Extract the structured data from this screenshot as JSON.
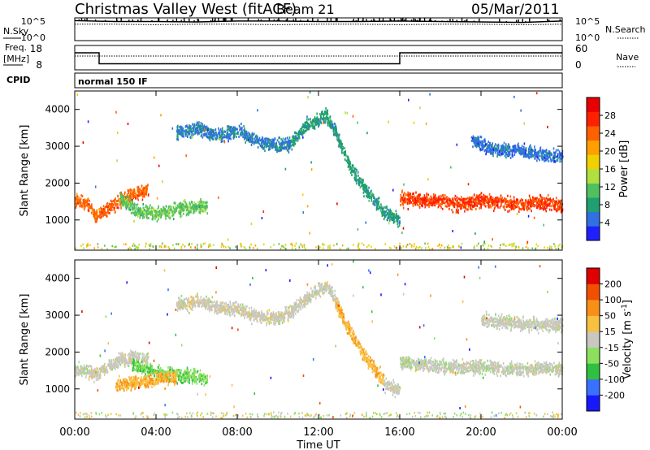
{
  "header": {
    "station": "Christmas Valley West (fitACF)",
    "beam": "Beam 21",
    "date": "05/Mar/2011"
  },
  "noise_panel": {
    "left_label": "N.Sky",
    "right_label": "N.Search",
    "left_ticks": [
      "10^5",
      "10^0"
    ],
    "right_ticks": [
      "10^5",
      "10^0"
    ]
  },
  "freq_panel": {
    "left_label_1": "Freq.",
    "left_label_2": "[MHz]",
    "right_label": "Nave",
    "left_ticks": [
      "18",
      "8"
    ],
    "right_ticks": [
      "60",
      "0"
    ]
  },
  "cpid": {
    "label": "CPID",
    "value": "normal 150 IF"
  },
  "axes": {
    "ylabel": "Slant Range [km]",
    "yticks": [
      "4000",
      "3000",
      "2000",
      "1000"
    ],
    "xticks": [
      "00:00",
      "04:00",
      "08:00",
      "12:00",
      "16:00",
      "20:00",
      "00:00"
    ],
    "xlabel": "Time UT"
  },
  "power_colorbar": {
    "label": "Power [dB]",
    "ticks": [
      "28",
      "24",
      "20",
      "16",
      "12",
      "8",
      "4"
    ],
    "colors": [
      "#2020ff",
      "#3070e0",
      "#20a070",
      "#50c060",
      "#b0e040",
      "#f0d000",
      "#ffa000",
      "#ff6000",
      "#ff2000",
      "#e80000"
    ]
  },
  "velocity_colorbar": {
    "label_main": "Velocity [",
    "label_unit": "m s",
    "label_exp": "-1",
    "label_close": "]",
    "ticks": [
      "200",
      "100",
      "50",
      "15",
      "-15",
      "-50",
      "-100",
      "-200"
    ],
    "colors": [
      "#1818ff",
      "#3a70ff",
      "#30c040",
      "#8ce060",
      "#c8c8c0",
      "#f8c040",
      "#f89018",
      "#f05000",
      "#e00000"
    ]
  },
  "chart_data": [
    {
      "type": "line",
      "title": "",
      "series": [
        {
          "name": "N.Sky",
          "style": "solid",
          "level_log10": [
            4.4,
            4.2,
            4.2,
            4.1,
            4.3,
            4.3,
            4.2,
            4.2,
            4.3,
            4.2,
            4.1,
            4.0,
            4.3
          ]
        },
        {
          "name": "N.Search",
          "style": "dotted",
          "level_log10": [
            3.6,
            3.6,
            3.5,
            3.6,
            3.6,
            3.5,
            3.6,
            3.6,
            3.5,
            3.6,
            3.6,
            3.5,
            3.6
          ]
        }
      ],
      "x": [
        0,
        2,
        4,
        6,
        8,
        10,
        12,
        14,
        16,
        18,
        20,
        22,
        24
      ],
      "ylim": [
        0,
        5
      ]
    },
    {
      "type": "line",
      "title": "",
      "series": [
        {
          "name": "Freq.",
          "style": "solid",
          "ylim": [
            8,
            18
          ],
          "x": [
            0,
            1.2,
            1.2,
            16,
            16,
            24
          ],
          "values": [
            15,
            15,
            10.5,
            10.5,
            15,
            15
          ]
        },
        {
          "name": "Nave",
          "style": "dotted",
          "ylim": [
            0,
            60
          ],
          "x": [
            0,
            1.2,
            1.2,
            16,
            16,
            24
          ],
          "values": [
            34,
            34,
            34,
            34,
            34,
            34
          ]
        }
      ],
      "xlim": [
        0,
        24
      ]
    },
    {
      "type": "scatter",
      "title": "Power [dB]",
      "xlabel": "Time UT",
      "ylabel": "Slant Range [km]",
      "xlim": [
        0,
        24
      ],
      "ylim": [
        180,
        4500
      ],
      "xtick_values": [
        0,
        4,
        8,
        12,
        16,
        20,
        24
      ],
      "ytick_values": [
        4000,
        3000,
        2000,
        1000
      ],
      "cbar_range": [
        0,
        32
      ],
      "echo_bands": [
        {
          "x": [
            0.0,
            0.6,
            1.0,
            1.5,
            2.2,
            3.0,
            3.6
          ],
          "y": [
            1550,
            1450,
            1150,
            1300,
            1550,
            1750,
            1850
          ],
          "value": 24
        },
        {
          "x": [
            2.2,
            3.0,
            4.0,
            5.0,
            6.0,
            6.5
          ],
          "y": [
            1600,
            1300,
            1200,
            1300,
            1400,
            1400
          ],
          "value": 12
        },
        {
          "x": [
            5.0,
            6.0,
            7.0,
            8.0,
            9.0,
            10.0,
            10.6
          ],
          "y": [
            3400,
            3500,
            3300,
            3450,
            3150,
            3050,
            3100
          ],
          "value": 6
        },
        {
          "x": [
            10.6,
            11.3,
            12.0,
            12.4,
            13.0,
            13.6,
            14.4,
            15.2,
            16.0
          ],
          "y": [
            3100,
            3550,
            3750,
            3850,
            3200,
            2400,
            1750,
            1250,
            1000
          ],
          "value": 8
        },
        {
          "x": [
            16.0,
            17.0,
            18.0,
            19.0,
            20.0,
            21.0,
            22.0,
            23.0,
            24.0
          ],
          "y": [
            1600,
            1550,
            1550,
            1450,
            1550,
            1500,
            1450,
            1500,
            1400
          ],
          "value": 26
        },
        {
          "x": [
            19.5,
            20.5,
            22.0,
            23.0,
            24.0
          ],
          "y": [
            3200,
            2950,
            2900,
            2800,
            2750
          ],
          "value": 5
        }
      ]
    },
    {
      "type": "scatter",
      "title": "Velocity [m s-1]",
      "xlabel": "Time UT",
      "ylabel": "Slant Range [km]",
      "xlim": [
        0,
        24
      ],
      "ylim": [
        180,
        4500
      ],
      "xtick_values": [
        0,
        4,
        8,
        12,
        16,
        20,
        24
      ],
      "ytick_values": [
        4000,
        3000,
        2000,
        1000
      ],
      "cbar_range": [
        -200,
        200
      ],
      "echo_bands": [
        {
          "x": [
            0.0,
            0.6,
            1.0,
            1.5,
            2.2,
            3.0,
            3.6
          ],
          "y": [
            1550,
            1500,
            1400,
            1600,
            1800,
            1900,
            1850
          ],
          "value": 0
        },
        {
          "x": [
            2.8,
            3.5,
            4.2,
            5.0,
            6.0,
            6.5
          ],
          "y": [
            1700,
            1550,
            1450,
            1400,
            1350,
            1300
          ],
          "value": -60
        },
        {
          "x": [
            2.0,
            3.0,
            4.0,
            5.0
          ],
          "y": [
            1150,
            1200,
            1300,
            1350
          ],
          "value": 60
        },
        {
          "x": [
            5.0,
            6.0,
            7.0,
            8.0,
            9.0,
            10.0,
            10.6
          ],
          "y": [
            3300,
            3400,
            3250,
            3200,
            3000,
            2950,
            3100
          ],
          "value": 5
        },
        {
          "x": [
            10.6,
            11.3,
            12.0,
            12.4,
            13.0
          ],
          "y": [
            3100,
            3450,
            3700,
            3850,
            3300
          ],
          "value": 0
        },
        {
          "x": [
            12.8,
            13.6,
            14.4,
            15.2
          ],
          "y": [
            3400,
            2500,
            1800,
            1300
          ],
          "value": 60
        },
        {
          "x": [
            15.2,
            16.0
          ],
          "y": [
            1150,
            1000
          ],
          "value": 0
        },
        {
          "x": [
            16.0,
            17.0,
            18.0,
            19.0,
            20.0,
            21.0,
            22.0,
            23.0,
            24.0
          ],
          "y": [
            1750,
            1700,
            1650,
            1600,
            1650,
            1600,
            1550,
            1600,
            1550
          ],
          "value": -5
        },
        {
          "x": [
            20.0,
            22.0,
            24.0
          ],
          "y": [
            2900,
            2800,
            2750
          ],
          "value": 0
        }
      ]
    }
  ]
}
